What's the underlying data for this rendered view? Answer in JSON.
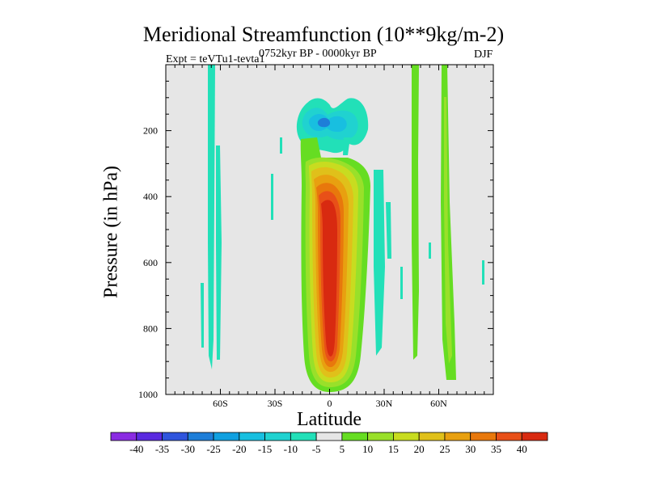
{
  "chart_data": {
    "type": "heatmap",
    "title": "Meridional Streamfunction (10**9kg/m-2)",
    "subtitle_left": "Expt = teVTu1-tevta1",
    "subtitle_center": "0752kyr BP - 0000kyr BP",
    "subtitle_right": "DJF",
    "xlabel": "Latitude",
    "ylabel": "Pressure (in hPa)",
    "xlim": [
      -90,
      90
    ],
    "ylim": [
      1000,
      0
    ],
    "x_ticks": [
      {
        "value": -60,
        "label": "60S"
      },
      {
        "value": -30,
        "label": "30S"
      },
      {
        "value": 0,
        "label": "0"
      },
      {
        "value": 30,
        "label": "30N"
      },
      {
        "value": 60,
        "label": "60N"
      }
    ],
    "y_ticks": [
      200,
      400,
      600,
      800,
      1000
    ],
    "colorbar": {
      "labels": [
        "-40",
        "-35",
        "-30",
        "-25",
        "-20",
        "-15",
        "-10",
        "-5",
        "5",
        "10",
        "15",
        "20",
        "25",
        "30",
        "35",
        "40"
      ],
      "colors": [
        "#8a2be2",
        "#5a2ae0",
        "#2f55dd",
        "#1e7ed8",
        "#10a0e0",
        "#18bfe0",
        "#20d2d0",
        "#22e0b8",
        "#e6e6e6",
        "#66dd22",
        "#99e02a",
        "#c8dc20",
        "#e0c01a",
        "#e8a010",
        "#e8780c",
        "#e85018",
        "#d82a10"
      ]
    },
    "features": [
      {
        "name": "tropical-positive-cell",
        "lat_center": 0,
        "lat_width": 18,
        "p_top": 220,
        "p_bottom": 985,
        "max": 40
      },
      {
        "name": "upper-negative-cell",
        "lat_center": 3,
        "p_center": 180,
        "min": -25
      },
      {
        "name": "sh-midlat-negative-bands",
        "lat_range": [
          -70,
          -45
        ],
        "value": -5
      },
      {
        "name": "nh-midlat-positive-bands",
        "lat_range": [
          45,
          63
        ],
        "value": 10
      }
    ]
  }
}
